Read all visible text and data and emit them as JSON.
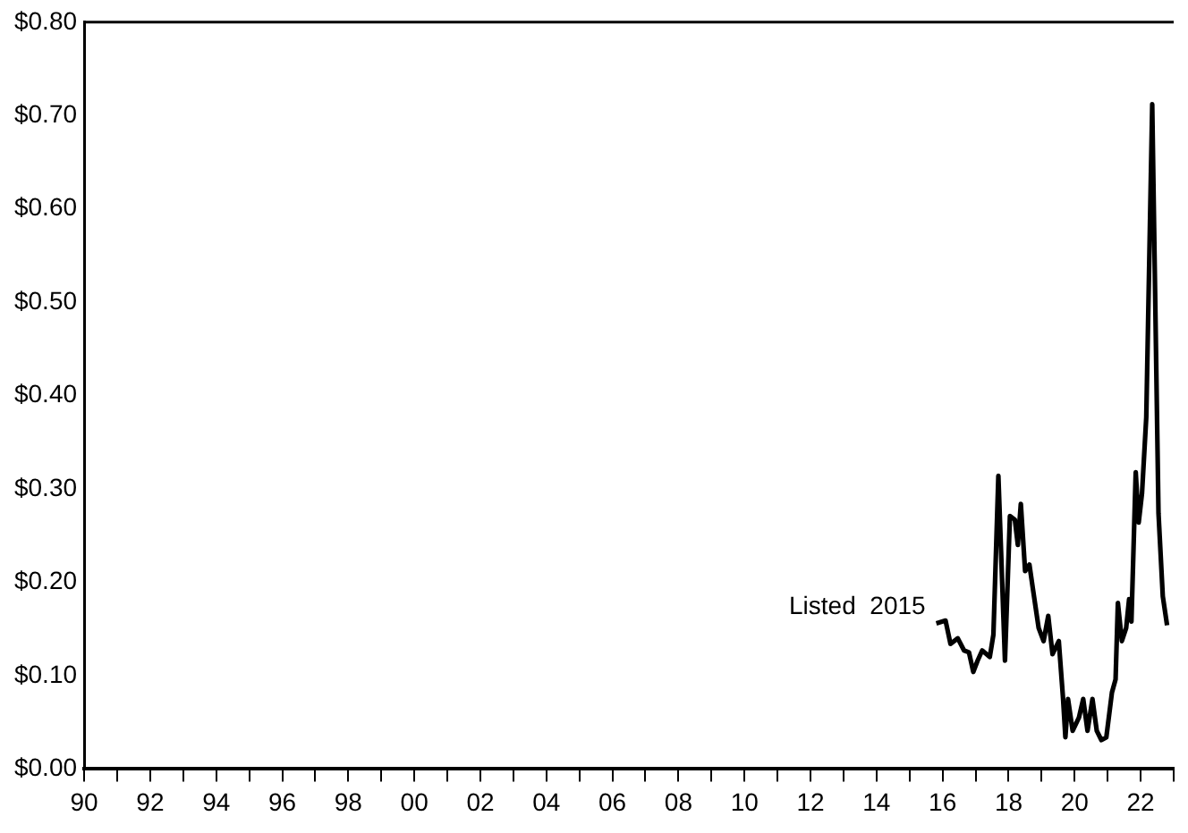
{
  "chart_data": {
    "type": "line",
    "x": [
      2015.81,
      2016.09,
      2016.24,
      2016.46,
      2016.65,
      2016.8,
      2016.93,
      2017.06,
      2017.2,
      2017.43,
      2017.54,
      2017.69,
      2017.89,
      2018.04,
      2018.19,
      2018.28,
      2018.37,
      2018.5,
      2018.63,
      2018.74,
      2018.91,
      2019.06,
      2019.2,
      2019.33,
      2019.52,
      2019.65,
      2019.72,
      2019.8,
      2019.94,
      2020.13,
      2020.26,
      2020.39,
      2020.54,
      2020.67,
      2020.81,
      2020.96,
      2021.13,
      2021.24,
      2021.31,
      2021.43,
      2021.56,
      2021.65,
      2021.72,
      2021.85,
      2021.94,
      2022.04,
      2022.17,
      2022.35,
      2022.54,
      2022.67,
      2022.8
    ],
    "series": [
      {
        "color": "#000000",
        "values": [
          0.156,
          0.159,
          0.134,
          0.14,
          0.127,
          0.125,
          0.104,
          0.116,
          0.127,
          0.12,
          0.144,
          0.314,
          0.116,
          0.271,
          0.267,
          0.24,
          0.284,
          0.212,
          0.219,
          0.192,
          0.151,
          0.137,
          0.164,
          0.123,
          0.137,
          0.075,
          0.034,
          0.075,
          0.041,
          0.055,
          0.075,
          0.041,
          0.075,
          0.041,
          0.031,
          0.034,
          0.082,
          0.096,
          0.178,
          0.137,
          0.151,
          0.182,
          0.158,
          0.318,
          0.264,
          0.295,
          0.377,
          0.712,
          0.274,
          0.185,
          0.154
        ]
      }
    ],
    "xlim": [
      1990,
      2023
    ],
    "xticks": [
      {
        "value": 1990,
        "label": "90"
      },
      {
        "value": 1991,
        "label": null
      },
      {
        "value": 1992,
        "label": "92"
      },
      {
        "value": 1993,
        "label": null
      },
      {
        "value": 1994,
        "label": "94"
      },
      {
        "value": 1995,
        "label": null
      },
      {
        "value": 1996,
        "label": "96"
      },
      {
        "value": 1997,
        "label": null
      },
      {
        "value": 1998,
        "label": "98"
      },
      {
        "value": 1999,
        "label": null
      },
      {
        "value": 2000,
        "label": "00"
      },
      {
        "value": 2001,
        "label": null
      },
      {
        "value": 2002,
        "label": "02"
      },
      {
        "value": 2003,
        "label": null
      },
      {
        "value": 2004,
        "label": "04"
      },
      {
        "value": 2005,
        "label": null
      },
      {
        "value": 2006,
        "label": "06"
      },
      {
        "value": 2007,
        "label": null
      },
      {
        "value": 2008,
        "label": "08"
      },
      {
        "value": 2009,
        "label": null
      },
      {
        "value": 2010,
        "label": "10"
      },
      {
        "value": 2011,
        "label": null
      },
      {
        "value": 2012,
        "label": "12"
      },
      {
        "value": 2013,
        "label": null
      },
      {
        "value": 2014,
        "label": "14"
      },
      {
        "value": 2015,
        "label": null
      },
      {
        "value": 2016,
        "label": "16"
      },
      {
        "value": 2017,
        "label": null
      },
      {
        "value": 2018,
        "label": "18"
      },
      {
        "value": 2019,
        "label": null
      },
      {
        "value": 2020,
        "label": "20"
      },
      {
        "value": 2021,
        "label": null
      },
      {
        "value": 2022,
        "label": "22"
      },
      {
        "value": 2023,
        "label": null
      }
    ],
    "ylim": [
      0,
      0.8
    ],
    "yticks": [
      {
        "value": 0,
        "label": "$0.00"
      },
      {
        "value": 0.1,
        "label": "$0.10"
      },
      {
        "value": 0.2,
        "label": "$0.20"
      },
      {
        "value": 0.3,
        "label": "$0.30"
      },
      {
        "value": 0.4,
        "label": "$0.40"
      },
      {
        "value": 0.5,
        "label": "$0.50"
      },
      {
        "value": 0.6,
        "label": "$0.60"
      },
      {
        "value": 0.7,
        "label": "$0.70"
      },
      {
        "value": 0.8,
        "label": "$0.80"
      }
    ],
    "annotations": [
      {
        "text": "Listed  2015",
        "x": 2015.81,
        "y": 0.156
      }
    ],
    "grid": false,
    "legend": false,
    "marker": "none",
    "line_style": "solid"
  }
}
